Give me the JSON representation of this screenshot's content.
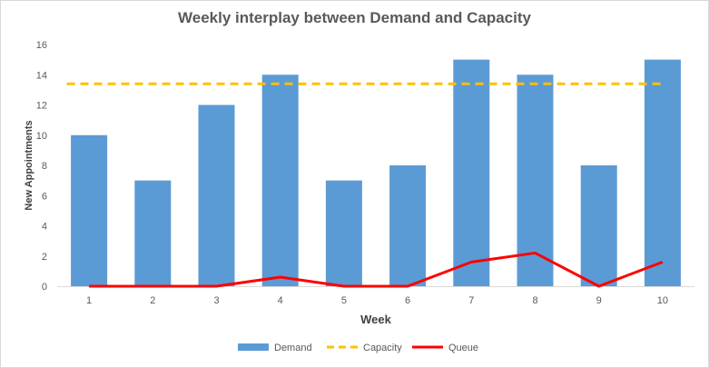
{
  "chart_data": {
    "type": "bar",
    "title": "Weekly interplay between Demand and Capacity",
    "xlabel": "Week",
    "ylabel": "New Appointments",
    "ylim": [
      0,
      16
    ],
    "yticks": [
      0,
      2,
      4,
      6,
      8,
      10,
      12,
      14,
      16
    ],
    "categories": [
      "1",
      "2",
      "3",
      "4",
      "5",
      "6",
      "7",
      "8",
      "9",
      "10"
    ],
    "series": [
      {
        "name": "Demand",
        "kind": "bar",
        "color": "#5b9bd5",
        "values": [
          10,
          7,
          12,
          14,
          7,
          8,
          15,
          14,
          8,
          15
        ]
      },
      {
        "name": "Capacity",
        "kind": "dashed-line",
        "color": "#ffc000",
        "values": [
          13.4,
          13.4,
          13.4,
          13.4,
          13.4,
          13.4,
          13.4,
          13.4,
          13.4,
          13.4
        ]
      },
      {
        "name": "Queue",
        "kind": "line",
        "color": "#ff0000",
        "values": [
          0,
          0,
          0,
          0.6,
          0,
          0,
          1.6,
          2.2,
          0,
          1.6
        ]
      }
    ],
    "legend_position": "bottom",
    "grid": false
  }
}
